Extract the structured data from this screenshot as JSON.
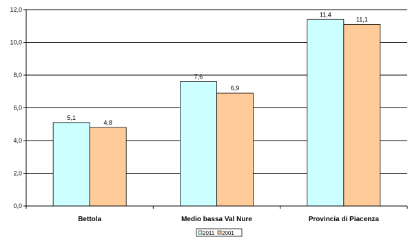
{
  "chart_data": {
    "type": "bar",
    "categories": [
      "Bettola",
      "Medio bassa Val Nure",
      "Provincia di Piacenza"
    ],
    "series": [
      {
        "name": "2011",
        "values": [
          5.1,
          7.6,
          11.4
        ],
        "labels": [
          "5,1",
          "7,6",
          "11,4"
        ],
        "color": "#ccffff"
      },
      {
        "name": "2001",
        "values": [
          4.8,
          6.9,
          11.1
        ],
        "labels": [
          "4,8",
          "6,9",
          "11,1"
        ],
        "color": "#ffcc99"
      }
    ],
    "ylim": [
      0,
      12
    ],
    "yticks": [
      0,
      2,
      4,
      6,
      8,
      10,
      12
    ],
    "ytick_labels": [
      "0,0",
      "2,0",
      "4,0",
      "6,0",
      "8,0",
      "10,0",
      "12,0"
    ],
    "grid": true,
    "legend_position": "bottom",
    "bar_border_color": "#000000",
    "gridline_color": "#000000"
  }
}
